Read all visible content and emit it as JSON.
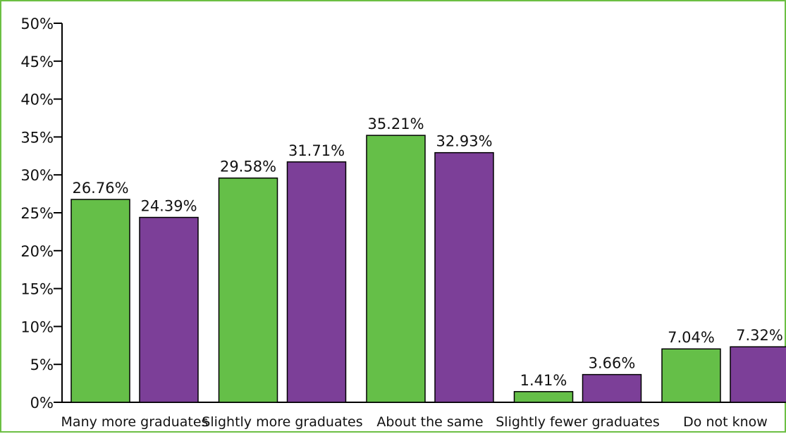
{
  "chart_data": {
    "type": "bar",
    "categories": [
      "Many more graduates",
      "Slightly more graduates",
      "About the same",
      "Slightly fewer graduates",
      "Do not know"
    ],
    "series": [
      {
        "values": [
          26.76,
          29.58,
          35.21,
          1.41,
          7.04
        ],
        "color": "#65bf48"
      },
      {
        "values": [
          24.39,
          31.71,
          32.93,
          3.66,
          7.32
        ],
        "color": "#7c3f98"
      }
    ],
    "data_labels": [
      [
        "26.76%",
        "29.58%",
        "35.21%",
        "1.41%",
        "7.04%"
      ],
      [
        "24.39%",
        "31.71%",
        "32.93%",
        "3.66%",
        "7.32%"
      ]
    ],
    "y_ticks": [
      "0%",
      "5%",
      "10%",
      "15%",
      "20%",
      "25%",
      "30%",
      "35%",
      "40%",
      "45%",
      "50%"
    ],
    "ylim": [
      0,
      50
    ],
    "grid": false,
    "legend": "none",
    "title": "",
    "xlabel": "",
    "ylabel": "",
    "frame_color": "#6cbf43"
  }
}
